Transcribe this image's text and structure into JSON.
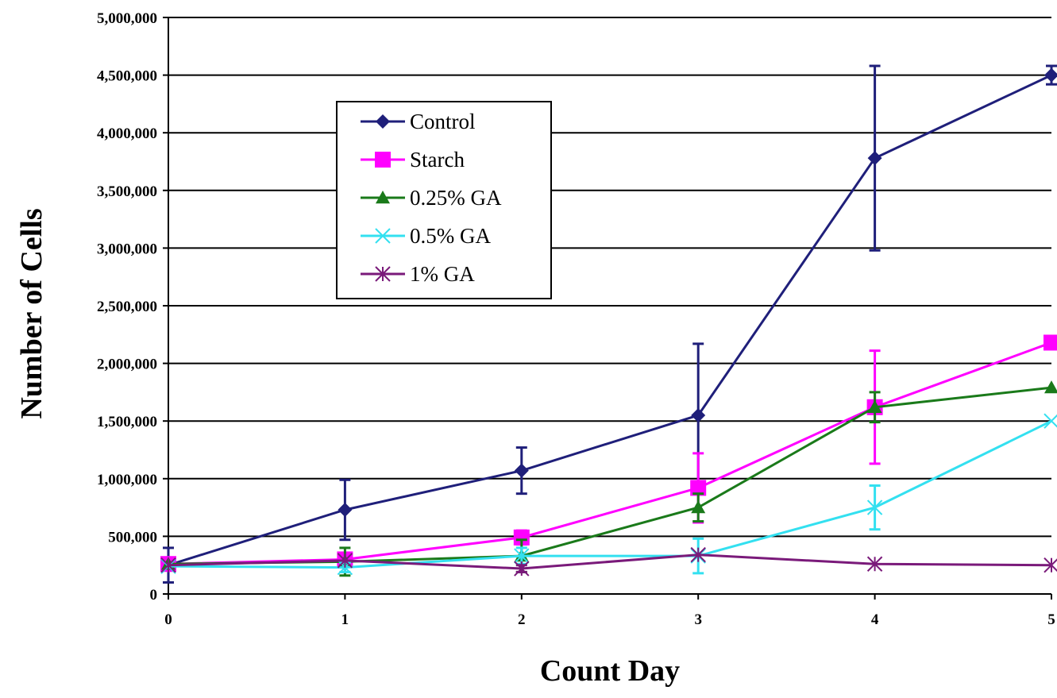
{
  "chart_data": {
    "type": "line",
    "title": "",
    "xlabel": "Count Day",
    "ylabel": "Number of Cells",
    "x": [
      0,
      1,
      2,
      3,
      4,
      5
    ],
    "x_tick_labels": [
      "0",
      "1",
      "2",
      "3",
      "4",
      "5"
    ],
    "ylim": [
      0,
      5000000
    ],
    "y_tick_labels": [
      "0",
      "500,000",
      "1,000,000",
      "1,500,000",
      "2,000,000",
      "2,500,000",
      "3,000,000",
      "3,500,000",
      "4,000,000",
      "4,500,000",
      "5,000,000"
    ],
    "grid": "horizontal",
    "legend_position": "upper-left inside plot",
    "series": [
      {
        "name": "Control",
        "color": "#1f1f7a",
        "marker": "diamond",
        "values": [
          250000,
          730000,
          1070000,
          1550000,
          3780000,
          4500000
        ],
        "error": [
          150000,
          260000,
          200000,
          620000,
          800000,
          80000
        ]
      },
      {
        "name": "Starch",
        "color": "#ff00ff",
        "marker": "square",
        "values": [
          260000,
          300000,
          490000,
          920000,
          1620000,
          2180000
        ],
        "error": [
          0,
          20000,
          60000,
          300000,
          490000,
          0
        ]
      },
      {
        "name": "0.25% GA",
        "color": "#1a7a1a",
        "marker": "triangle",
        "values": [
          260000,
          280000,
          330000,
          750000,
          1620000,
          1790000
        ],
        "error": [
          0,
          120000,
          140000,
          120000,
          130000,
          0
        ]
      },
      {
        "name": "0.5% GA",
        "color": "#33e0f0",
        "marker": "x",
        "values": [
          240000,
          230000,
          330000,
          330000,
          750000,
          1500000
        ],
        "error": [
          0,
          40000,
          70000,
          150000,
          190000,
          0
        ]
      },
      {
        "name": "1% GA",
        "color": "#7a1a7a",
        "marker": "star",
        "values": [
          250000,
          290000,
          220000,
          340000,
          260000,
          250000
        ],
        "error": [
          0,
          0,
          30000,
          0,
          0,
          0
        ]
      }
    ]
  }
}
